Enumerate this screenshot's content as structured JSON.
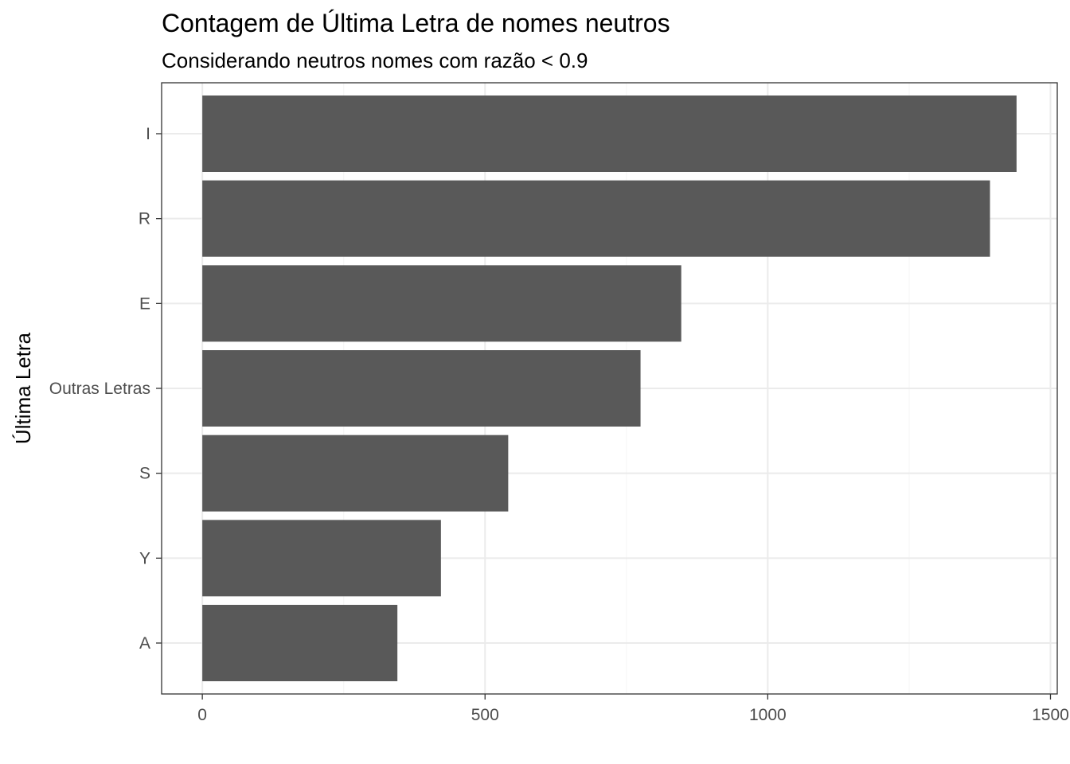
{
  "chart_data": {
    "type": "bar",
    "orientation": "horizontal",
    "title": "Contagem de Última Letra de nomes neutros",
    "subtitle": "Considerando neutros nomes com razão < 0.9",
    "xlabel": "",
    "ylabel": "Última Letra",
    "categories": [
      "I",
      "R",
      "E",
      "Outras Letras",
      "S",
      "Y",
      "A"
    ],
    "values": [
      1440,
      1393,
      847,
      775,
      541,
      422,
      345
    ],
    "xlim": [
      -72,
      1512
    ],
    "x_ticks": [
      0,
      500,
      1000,
      1500
    ],
    "x_tick_labels": [
      "0",
      "500",
      "1000",
      "1500"
    ],
    "grid": true,
    "legend": "none",
    "colors": {
      "bar": "#595959",
      "grid_major": "#ebebeb",
      "grid_minor": "#f5f5f5",
      "panel_border": "#333333",
      "tick_label": "#4d4d4d"
    }
  }
}
